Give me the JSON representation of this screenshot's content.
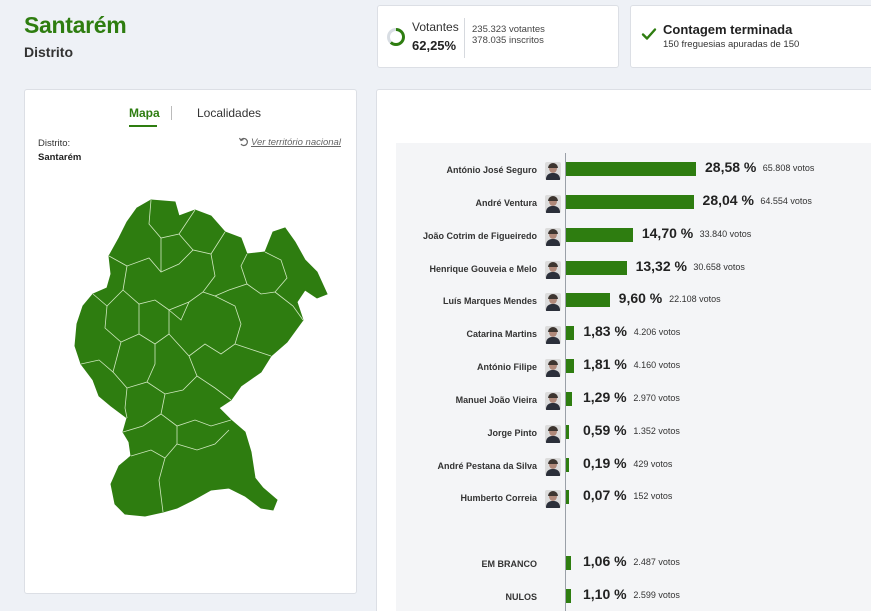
{
  "header": {
    "title": "Santarém",
    "subtitle": "Distrito"
  },
  "turnout": {
    "label": "Votantes",
    "percent": "62,25%",
    "percent_value": 0.6225,
    "voters": "235.323 votantes",
    "registered": "378.035 inscritos"
  },
  "count": {
    "title": "Contagem terminada",
    "subtitle": "150 freguesias apuradas de 150",
    "icon": "check-icon"
  },
  "map_panel": {
    "tab_map": "Mapa",
    "tab_places": "Localidades",
    "district_label": "Distrito:",
    "district_value": "Santarém",
    "national_link": "Ver território nacional",
    "map_color": "#2e7d10"
  },
  "colors": {
    "accent": "#2e7d10",
    "bar": "#2e7d10"
  },
  "chart_data": {
    "type": "bar",
    "orientation": "horizontal",
    "categories": [
      "António José Seguro",
      "André Ventura",
      "João Cotrim de Figueiredo",
      "Henrique Gouveia e Melo",
      "Luís Marques Mendes",
      "Catarina Martins",
      "António Filipe",
      "Manuel João Vieira",
      "Jorge Pinto",
      "André Pestana da Silva",
      "Humberto Correia",
      "EM BRANCO",
      "NULOS"
    ],
    "values": [
      28.58,
      28.04,
      14.7,
      13.32,
      9.6,
      1.83,
      1.81,
      1.29,
      0.59,
      0.19,
      0.07,
      1.06,
      1.1
    ],
    "percent_labels": [
      "28,58 %",
      "28,04 %",
      "14,70 %",
      "13,32 %",
      "9,60 %",
      "1,83 %",
      "1,81 %",
      "1,29 %",
      "0,59 %",
      "0,19 %",
      "0,07 %",
      "1,06 %",
      "1,10 %"
    ],
    "votes_labels": [
      "65.808 votos",
      "64.554 votos",
      "33.840 votos",
      "30.658 votos",
      "22.108 votos",
      "4.206 votos",
      "4.160 votos",
      "2.970 votos",
      "1.352 votos",
      "429 votos",
      "152 votos",
      "2.487 votos",
      "2.599 votos"
    ],
    "has_photo": [
      true,
      true,
      true,
      true,
      true,
      true,
      true,
      true,
      true,
      true,
      true,
      false,
      false
    ]
  }
}
